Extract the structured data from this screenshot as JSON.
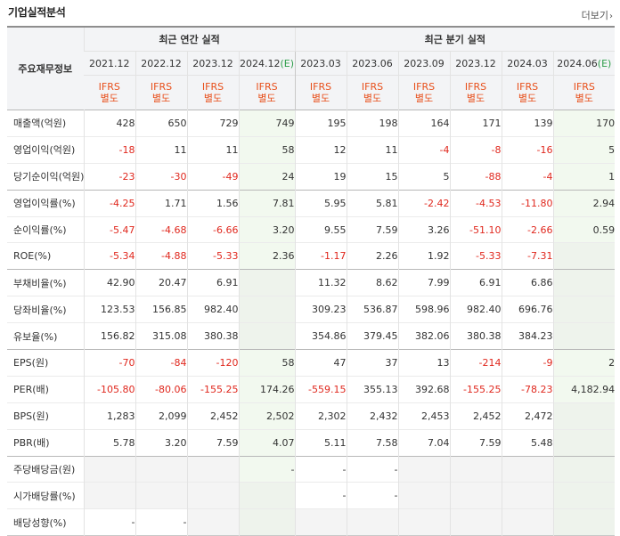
{
  "section_title": "기업실적분석",
  "more_label": "더보기",
  "table": {
    "row_header_label": "주요재무정보",
    "group_annual": "최근 연간 실적",
    "group_quarterly": "최근 분기 실적",
    "periods": [
      {
        "date": "2021.12",
        "type_a": "IFRS",
        "type_b": "별도"
      },
      {
        "date": "2022.12",
        "type_a": "IFRS",
        "type_b": "별도"
      },
      {
        "date": "2023.12",
        "type_a": "IFRS",
        "type_b": "별도"
      },
      {
        "date": "2024.12",
        "estimate": "(E)",
        "type_a": "IFRS",
        "type_b": "별도"
      },
      {
        "date": "2023.03",
        "type_a": "IFRS",
        "type_b": "별도"
      },
      {
        "date": "2023.06",
        "type_a": "IFRS",
        "type_b": "별도"
      },
      {
        "date": "2023.09",
        "type_a": "IFRS",
        "type_b": "별도"
      },
      {
        "date": "2023.12",
        "type_a": "IFRS",
        "type_b": "별도"
      },
      {
        "date": "2024.03",
        "type_a": "IFRS",
        "type_b": "별도"
      },
      {
        "date": "2024.06",
        "estimate": "(E)",
        "type_a": "IFRS",
        "type_b": "별도"
      }
    ],
    "rows": [
      {
        "label": "매출액(억원)",
        "values": [
          "428",
          "650",
          "729",
          "749",
          "195",
          "198",
          "164",
          "171",
          "139",
          "170"
        ]
      },
      {
        "label": "영업이익(억원)",
        "values": [
          "-18",
          "11",
          "11",
          "58",
          "12",
          "11",
          "-4",
          "-8",
          "-16",
          "5"
        ]
      },
      {
        "label": "당기순이익(억원)",
        "values": [
          "-23",
          "-30",
          "-49",
          "24",
          "19",
          "15",
          "5",
          "-88",
          "-4",
          "1"
        ]
      },
      {
        "label": "영업이익률(%)",
        "values": [
          "-4.25",
          "1.71",
          "1.56",
          "7.81",
          "5.95",
          "5.81",
          "-2.42",
          "-4.53",
          "-11.80",
          "2.94"
        ]
      },
      {
        "label": "순이익률(%)",
        "values": [
          "-5.47",
          "-4.68",
          "-6.66",
          "3.20",
          "9.55",
          "7.59",
          "3.26",
          "-51.10",
          "-2.66",
          "0.59"
        ]
      },
      {
        "label": "ROE(%)",
        "values": [
          "-5.34",
          "-4.88",
          "-5.33",
          "2.36",
          "-1.17",
          "2.26",
          "1.92",
          "-5.33",
          "-7.31",
          ""
        ]
      },
      {
        "label": "부채비율(%)",
        "values": [
          "42.90",
          "20.47",
          "6.91",
          "",
          "11.32",
          "8.62",
          "7.99",
          "6.91",
          "6.86",
          ""
        ]
      },
      {
        "label": "당좌비율(%)",
        "values": [
          "123.53",
          "156.85",
          "982.40",
          "",
          "309.23",
          "536.87",
          "598.96",
          "982.40",
          "696.76",
          ""
        ]
      },
      {
        "label": "유보율(%)",
        "values": [
          "156.82",
          "315.08",
          "380.38",
          "",
          "354.86",
          "379.45",
          "382.06",
          "380.38",
          "384.23",
          ""
        ]
      },
      {
        "label": "EPS(원)",
        "values": [
          "-70",
          "-84",
          "-120",
          "58",
          "47",
          "37",
          "13",
          "-214",
          "-9",
          "2"
        ]
      },
      {
        "label": "PER(배)",
        "values": [
          "-105.80",
          "-80.06",
          "-155.25",
          "174.26",
          "-559.15",
          "355.13",
          "392.68",
          "-155.25",
          "-78.23",
          "4,182.94"
        ]
      },
      {
        "label": "BPS(원)",
        "values": [
          "1,283",
          "2,099",
          "2,452",
          "2,502",
          "2,302",
          "2,432",
          "2,453",
          "2,452",
          "2,472",
          ""
        ]
      },
      {
        "label": "PBR(배)",
        "values": [
          "5.78",
          "3.20",
          "7.59",
          "4.07",
          "5.11",
          "7.58",
          "7.04",
          "7.59",
          "5.48",
          ""
        ]
      },
      {
        "label": "주당배당금(원)",
        "values": [
          "",
          "",
          "",
          "-",
          "-",
          "-",
          "",
          "",
          "",
          ""
        ]
      },
      {
        "label": "시가배당률(%)",
        "values": [
          "",
          "",
          "",
          "",
          "-",
          "-",
          "",
          "",
          "",
          ""
        ]
      },
      {
        "label": "배당성향(%)",
        "values": [
          "-",
          "-",
          "",
          "",
          "",
          "",
          "",
          "",
          "",
          ""
        ]
      }
    ]
  },
  "colors": {
    "negative": "#e0281e",
    "type_label": "#e8501c",
    "estimate": "#2e9e4a",
    "header_bg": "#f3f4f6"
  }
}
